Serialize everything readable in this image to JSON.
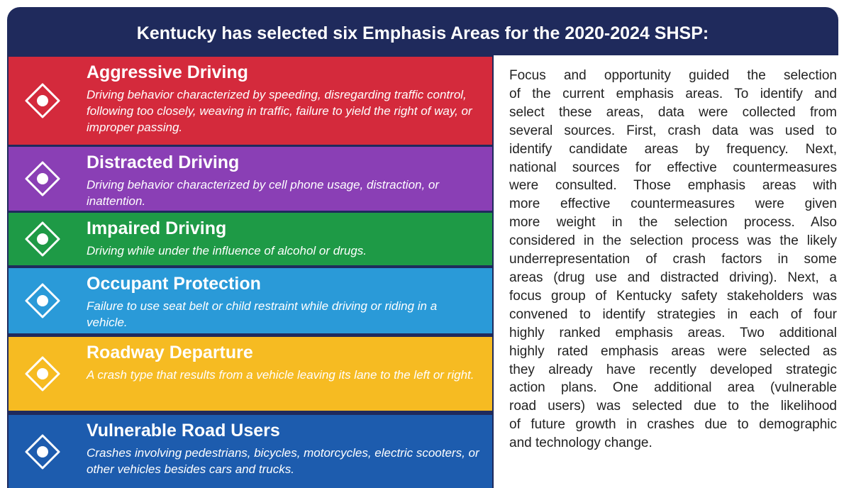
{
  "header": {
    "title": "Kentucky has selected six Emphasis Areas for the 2020-2024 SHSP:"
  },
  "areas": [
    {
      "title": "Aggressive Driving",
      "description": "Driving behavior characterized by speeding, disregarding traffic control, following too closely, weaving in traffic, failure to yield the right of way, or improper passing.",
      "color": "#d42a3c"
    },
    {
      "title": "Distracted Driving",
      "description": "Driving behavior characterized by cell phone usage, distraction, or inattention.",
      "color": "#8a3fb5"
    },
    {
      "title": "Impaired Driving",
      "description": "Driving while under the influence of alcohol or drugs.",
      "color": "#1e9a46"
    },
    {
      "title": "Occupant Protection",
      "description": "Failure to use seat belt or child restraint while driving or riding in a vehicle.",
      "color": "#2a9ad8"
    },
    {
      "title": "Roadway Departure",
      "description": "A crash type that results from a vehicle leaving its lane to the left or right.",
      "color": "#f6bb22"
    },
    {
      "title": "Vulnerable Road Users",
      "description": "Crashes involving pedestrians, bicycles, motorcycles, electric scooters, or other vehicles besides cars and trucks.",
      "color": "#1d5cae"
    }
  ],
  "paragraph": {
    "lines": [
      "Focus and opportunity guided the selection",
      "of the current emphasis areas.  To identify and",
      "select these areas, data were collected from",
      "several sources.  First, crash data was used to",
      "identify candidate areas by frequency.  Next,",
      "national sources for effective countermeasures",
      "were consulted.  Those emphasis areas with",
      "more effective countermeasures were given",
      "more weight in the selection process.  Also",
      "considered in the selection process was the likely",
      "underrepresentation of crash factors in some",
      "areas (drug use and distracted driving).  Next, a",
      "focus group of Kentucky safety stakeholders was",
      "convened to identify strategies in each of four",
      "highly ranked emphasis areas.  Two additional",
      "highly rated emphasis areas were selected as",
      "they already have recently developed strategic",
      "action plans.  One additional area (vulnerable",
      "road users) was selected due to the likelihood",
      "of future growth in crashes due to demographic",
      "and technology change."
    ]
  }
}
